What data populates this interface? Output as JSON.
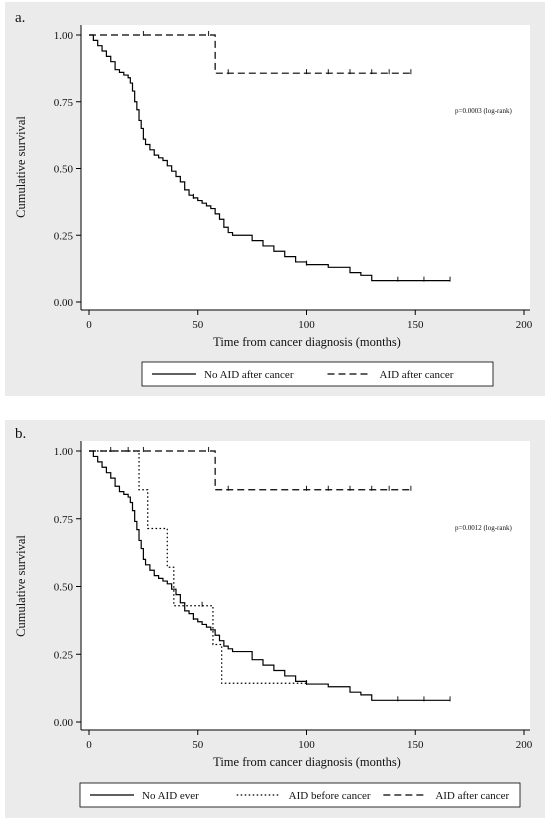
{
  "chart_data": [
    {
      "type": "line",
      "panel_label": "a.",
      "xlabel": "Time from cancer diagnosis (months)",
      "ylabel": "Cumulative survival",
      "xlim": [
        0,
        200
      ],
      "ylim": [
        0,
        1
      ],
      "xticks": [
        "0",
        "50",
        "100",
        "150",
        "200"
      ],
      "yticks": [
        "0.00",
        "0.25",
        "0.50",
        "0.75",
        "1.00"
      ],
      "annotation": "p=0.0003 (log-rank)",
      "grid": false,
      "legend_position": "bottom",
      "series": [
        {
          "name": "No AID after cancer",
          "dash": "solid",
          "points": [
            [
              0,
              1.0
            ],
            [
              2,
              0.98
            ],
            [
              4,
              0.96
            ],
            [
              6,
              0.94
            ],
            [
              8,
              0.92
            ],
            [
              10,
              0.9
            ],
            [
              12,
              0.87
            ],
            [
              14,
              0.86
            ],
            [
              16,
              0.85
            ],
            [
              18,
              0.84
            ],
            [
              19,
              0.82
            ],
            [
              20,
              0.79
            ],
            [
              21,
              0.75
            ],
            [
              22,
              0.72
            ],
            [
              23,
              0.68
            ],
            [
              24,
              0.65
            ],
            [
              25,
              0.61
            ],
            [
              26,
              0.59
            ],
            [
              28,
              0.57
            ],
            [
              30,
              0.55
            ],
            [
              32,
              0.54
            ],
            [
              34,
              0.53
            ],
            [
              36,
              0.51
            ],
            [
              38,
              0.49
            ],
            [
              40,
              0.47
            ],
            [
              42,
              0.45
            ],
            [
              44,
              0.42
            ],
            [
              46,
              0.4
            ],
            [
              48,
              0.39
            ],
            [
              50,
              0.38
            ],
            [
              52,
              0.37
            ],
            [
              54,
              0.36
            ],
            [
              56,
              0.35
            ],
            [
              58,
              0.33
            ],
            [
              60,
              0.31
            ],
            [
              62,
              0.28
            ],
            [
              64,
              0.26
            ],
            [
              66,
              0.25
            ],
            [
              70,
              0.25
            ],
            [
              75,
              0.23
            ],
            [
              80,
              0.21
            ],
            [
              85,
              0.19
            ],
            [
              90,
              0.17
            ],
            [
              95,
              0.15
            ],
            [
              100,
              0.14
            ],
            [
              110,
              0.13
            ],
            [
              120,
              0.11
            ],
            [
              125,
              0.1
            ],
            [
              130,
              0.08
            ],
            [
              140,
              0.08
            ],
            [
              150,
              0.08
            ],
            [
              166,
              0.08
            ]
          ],
          "censored": [
            [
              48,
              0.39
            ],
            [
              100,
              0.14
            ],
            [
              142,
              0.08
            ],
            [
              154,
              0.08
            ],
            [
              166,
              0.08
            ]
          ]
        },
        {
          "name": "AID after cancer",
          "dash": "dashed",
          "points": [
            [
              0,
              1.0
            ],
            [
              58,
              1.0
            ],
            [
              58,
              0.857
            ],
            [
              148,
              0.857
            ]
          ],
          "censored": [
            [
              25,
              1.0
            ],
            [
              55,
              1.0
            ],
            [
              64,
              0.857
            ],
            [
              100,
              0.857
            ],
            [
              110,
              0.857
            ],
            [
              120,
              0.857
            ],
            [
              130,
              0.857
            ],
            [
              138,
              0.857
            ],
            [
              148,
              0.857
            ]
          ]
        }
      ]
    },
    {
      "type": "line",
      "panel_label": "b.",
      "xlabel": "Time from cancer diagnosis (months)",
      "ylabel": "Cumulative survival",
      "xlim": [
        0,
        200
      ],
      "ylim": [
        0,
        1
      ],
      "xticks": [
        "0",
        "50",
        "100",
        "150",
        "200"
      ],
      "yticks": [
        "0.00",
        "0.25",
        "0.50",
        "0.75",
        "1.00"
      ],
      "annotation": "p=0.0012 (log-rank)",
      "grid": false,
      "legend_position": "bottom",
      "series": [
        {
          "name": "No AID ever",
          "dash": "solid",
          "points": [
            [
              0,
              1.0
            ],
            [
              2,
              0.98
            ],
            [
              4,
              0.96
            ],
            [
              6,
              0.94
            ],
            [
              8,
              0.92
            ],
            [
              10,
              0.9
            ],
            [
              12,
              0.87
            ],
            [
              14,
              0.85
            ],
            [
              16,
              0.84
            ],
            [
              18,
              0.83
            ],
            [
              19,
              0.81
            ],
            [
              20,
              0.78
            ],
            [
              21,
              0.74
            ],
            [
              22,
              0.71
            ],
            [
              23,
              0.67
            ],
            [
              24,
              0.64
            ],
            [
              25,
              0.6
            ],
            [
              26,
              0.58
            ],
            [
              28,
              0.56
            ],
            [
              30,
              0.54
            ],
            [
              32,
              0.53
            ],
            [
              34,
              0.52
            ],
            [
              36,
              0.51
            ],
            [
              38,
              0.49
            ],
            [
              40,
              0.47
            ],
            [
              42,
              0.44
            ],
            [
              44,
              0.41
            ],
            [
              46,
              0.4
            ],
            [
              48,
              0.38
            ],
            [
              50,
              0.37
            ],
            [
              52,
              0.36
            ],
            [
              54,
              0.35
            ],
            [
              56,
              0.34
            ],
            [
              58,
              0.32
            ],
            [
              60,
              0.3
            ],
            [
              62,
              0.28
            ],
            [
              64,
              0.27
            ],
            [
              66,
              0.26
            ],
            [
              70,
              0.26
            ],
            [
              75,
              0.23
            ],
            [
              80,
              0.21
            ],
            [
              85,
              0.19
            ],
            [
              90,
              0.17
            ],
            [
              95,
              0.15
            ],
            [
              100,
              0.14
            ],
            [
              110,
              0.13
            ],
            [
              120,
              0.11
            ],
            [
              125,
              0.1
            ],
            [
              130,
              0.08
            ],
            [
              140,
              0.08
            ],
            [
              150,
              0.08
            ],
            [
              166,
              0.08
            ]
          ],
          "censored": [
            [
              48,
              0.38
            ],
            [
              100,
              0.14
            ],
            [
              142,
              0.08
            ],
            [
              154,
              0.08
            ],
            [
              166,
              0.08
            ]
          ]
        },
        {
          "name": "AID before cancer",
          "dash": "dotted",
          "points": [
            [
              0,
              1.0
            ],
            [
              23,
              1.0
            ],
            [
              23,
              0.857
            ],
            [
              27,
              0.857
            ],
            [
              27,
              0.714
            ],
            [
              36,
              0.714
            ],
            [
              36,
              0.571
            ],
            [
              39,
              0.571
            ],
            [
              39,
              0.429
            ],
            [
              52,
              0.429
            ],
            [
              52,
              0.429
            ],
            [
              57,
              0.429
            ],
            [
              57,
              0.286
            ],
            [
              61,
              0.286
            ],
            [
              61,
              0.143
            ],
            [
              100,
              0.143
            ]
          ],
          "censored": [
            [
              52,
              0.429
            ]
          ]
        },
        {
          "name": "AID after cancer",
          "dash": "dashed",
          "points": [
            [
              0,
              1.0
            ],
            [
              58,
              1.0
            ],
            [
              58,
              0.857
            ],
            [
              148,
              0.857
            ]
          ],
          "censored": [
            [
              10,
              1.0
            ],
            [
              18,
              1.0
            ],
            [
              25,
              1.0
            ],
            [
              55,
              1.0
            ],
            [
              64,
              0.857
            ],
            [
              100,
              0.857
            ],
            [
              110,
              0.857
            ],
            [
              120,
              0.857
            ],
            [
              130,
              0.857
            ],
            [
              138,
              0.857
            ],
            [
              148,
              0.857
            ]
          ]
        }
      ]
    }
  ]
}
